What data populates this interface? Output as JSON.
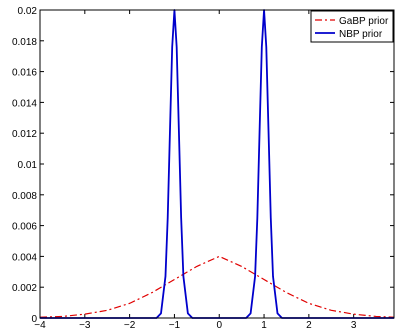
{
  "chart_data": {
    "type": "line",
    "title": "",
    "xlabel": "",
    "ylabel": "",
    "xlim": [
      -4,
      3.9
    ],
    "ylim": [
      0,
      0.02
    ],
    "x_ticks": [
      -4,
      -3,
      -2,
      -1,
      0,
      1,
      2,
      3
    ],
    "x_tick_labels": [
      "−4",
      "−3",
      "−2",
      "−1",
      "0",
      "1",
      "2",
      "3"
    ],
    "y_ticks": [
      0,
      0.002,
      0.004,
      0.006,
      0.008,
      0.01,
      0.012,
      0.014,
      0.016,
      0.018,
      0.02
    ],
    "y_tick_labels": [
      "0",
      "0.002",
      "0.004",
      "0.006",
      "0.008",
      "0.01",
      "0.012",
      "0.014",
      "0.016",
      "0.018",
      "0.02"
    ],
    "grid": false,
    "legend_position": "top-right",
    "series": [
      {
        "name": "GaBP prior",
        "color": "#e00000",
        "line_style": "dash-dot",
        "x": [
          -4,
          -3.5,
          -3,
          -2.5,
          -2,
          -1.5,
          -1,
          -0.5,
          0,
          0.5,
          1,
          1.5,
          2,
          2.5,
          3,
          3.5,
          3.9
        ],
        "y": [
          5e-05,
          0.0001,
          0.00025,
          0.0005,
          0.00095,
          0.00165,
          0.0025,
          0.00335,
          0.004,
          0.00335,
          0.0025,
          0.00165,
          0.00095,
          0.0005,
          0.00025,
          0.0001,
          5e-05
        ]
      },
      {
        "name": "NBP prior",
        "color": "#0000cc",
        "line_style": "solid",
        "x": [
          -4,
          -1.4,
          -1.3,
          -1.2,
          -1.15,
          -1.1,
          -1.05,
          -1.0,
          -0.95,
          -0.9,
          -0.85,
          -0.8,
          -0.7,
          -0.6,
          0,
          0.6,
          0.7,
          0.8,
          0.85,
          0.9,
          0.95,
          1.0,
          1.05,
          1.1,
          1.15,
          1.2,
          1.3,
          1.4,
          3.9
        ],
        "y": [
          0,
          0,
          0.0003,
          0.0027,
          0.0065,
          0.0121,
          0.0176,
          0.02,
          0.0176,
          0.0121,
          0.0065,
          0.0027,
          0.0003,
          0,
          0,
          0,
          0.0003,
          0.0027,
          0.0065,
          0.0121,
          0.0176,
          0.02,
          0.0176,
          0.0121,
          0.0065,
          0.0027,
          0.0003,
          0,
          0
        ]
      }
    ]
  }
}
